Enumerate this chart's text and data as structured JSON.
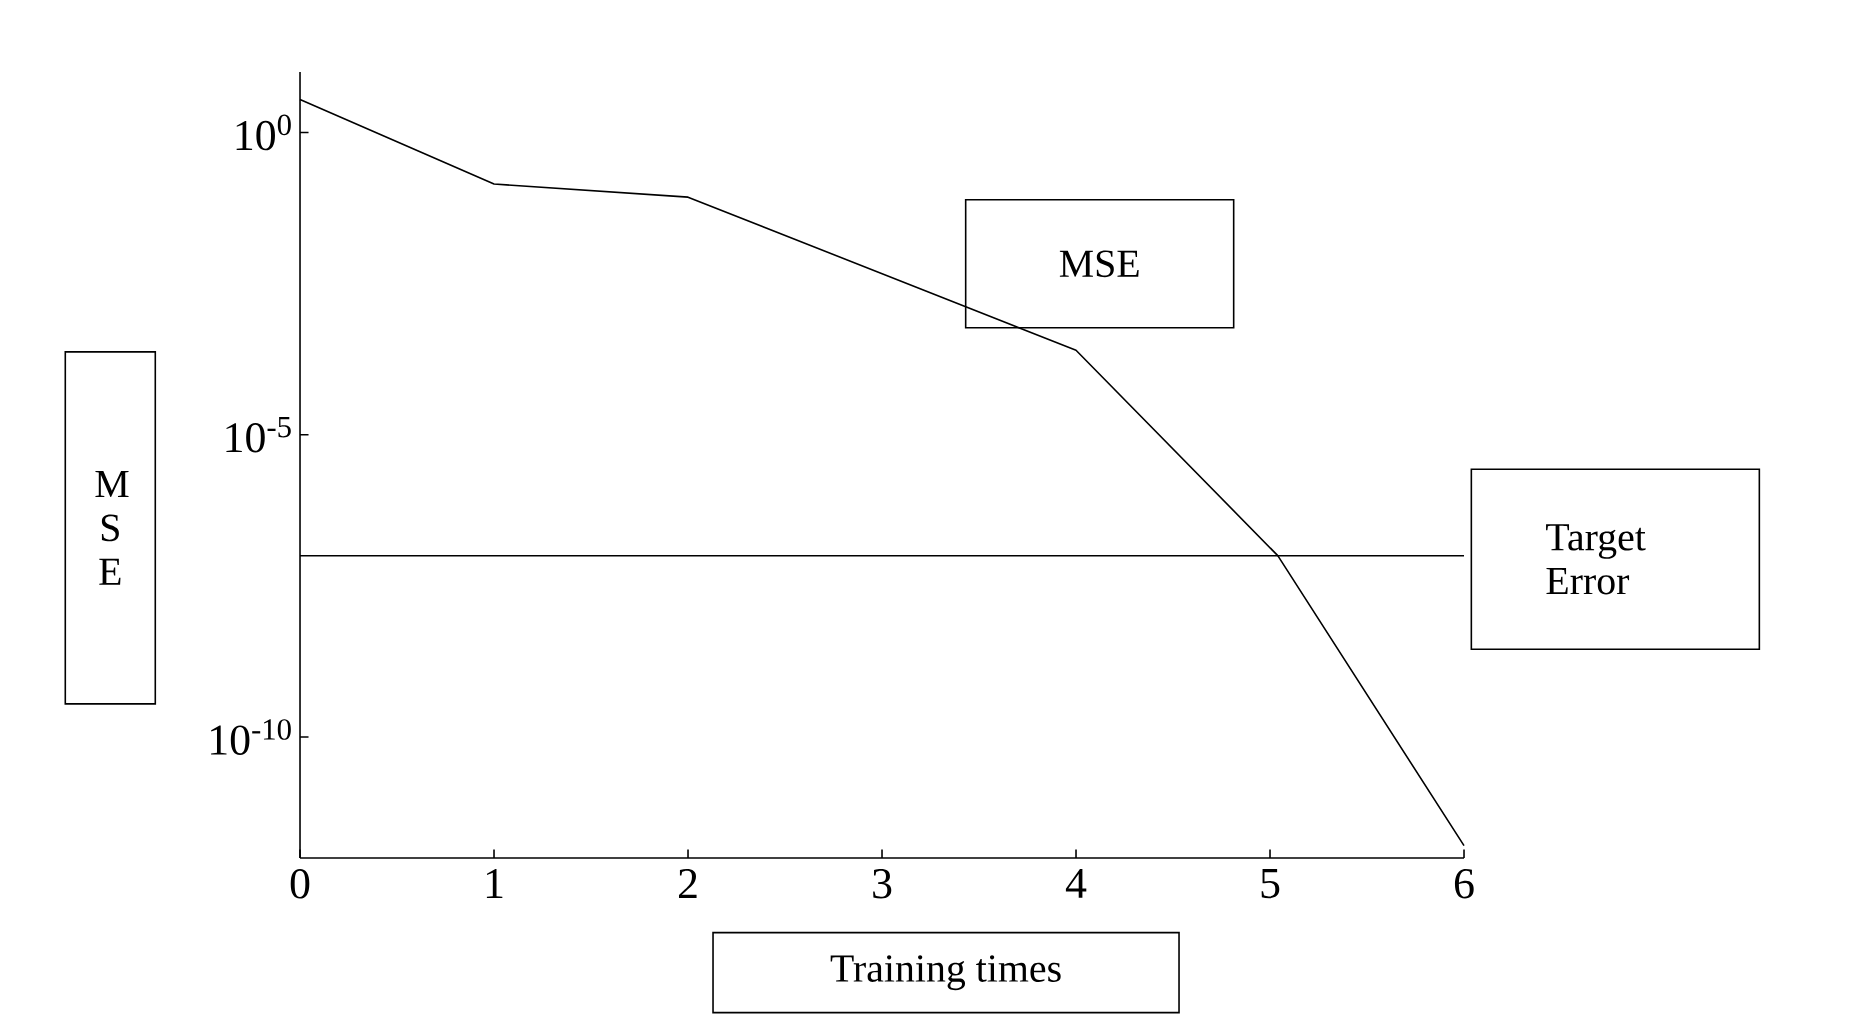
{
  "chart_data": {
    "type": "line",
    "xlabel": "Training times",
    "ylabel": "M S E",
    "log": "y",
    "marker": "none",
    "xlim": [
      0,
      6
    ],
    "xticks": [
      0,
      1,
      2,
      3,
      4,
      5,
      6
    ],
    "ylim": [
      1e-12,
      10
    ],
    "yticks": [
      {
        "value": 1,
        "label": "10$^{0}$"
      },
      {
        "value": 1e-05,
        "label": "10$^{-5}$"
      },
      {
        "value": 1e-10,
        "label": "10$^{-10}$"
      }
    ],
    "series": [
      {
        "name": "MSE",
        "color": "#000000",
        "x": [
          0,
          1,
          2,
          4,
          5.04,
          6
        ],
        "values": [
          3.5,
          0.14,
          0.085,
          0.00025,
          1e-07,
          1.6e-12
        ]
      }
    ],
    "ref_lines": [
      {
        "axis": "y",
        "value": 1e-07,
        "label": "Target Error",
        "color": "#000000"
      }
    ]
  }
}
